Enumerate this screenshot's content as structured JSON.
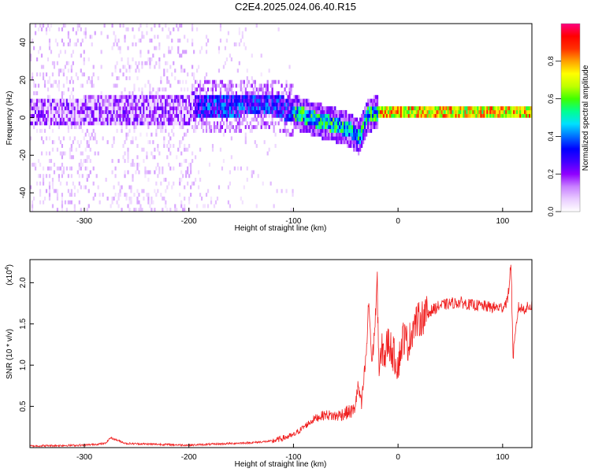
{
  "title": "C2E4.2025.024.06.40.R15",
  "chart_data": [
    {
      "type": "heatmap",
      "title": "C2E4.2025.024.06.40.R15",
      "xlabel": "Height of straight line (km)",
      "ylabel": "Frequency (Hz)",
      "xlim": [
        -352,
        128
      ],
      "ylim": [
        -50,
        50
      ],
      "xticks": [
        -300,
        -200,
        -100,
        0,
        100
      ],
      "yticks": [
        -40,
        -20,
        0,
        20,
        40
      ],
      "colorbar": {
        "label": "Normalized spectral amplitude",
        "range": [
          0.0,
          1.0
        ],
        "ticks": [
          0.0,
          0.2,
          0.4,
          0.6,
          0.8
        ],
        "colors": [
          "#ffffff",
          "#e9ccff",
          "#c880ff",
          "#8f00ff",
          "#4000ff",
          "#0000ff",
          "#0070ff",
          "#00e0ff",
          "#00ff90",
          "#40ff00",
          "#c0ff00",
          "#ffff00",
          "#ffa000",
          "#ff3000",
          "#ff0000",
          "#ff0080"
        ]
      },
      "ridge": {
        "x": [
          -350,
          -300,
          -250,
          -200,
          -150,
          -120,
          -100,
          -80,
          -60,
          -45,
          -38,
          -30,
          -20,
          0,
          50,
          100,
          128
        ],
        "y": [
          2,
          2,
          3,
          4,
          6,
          6,
          2,
          -2,
          -5,
          -8,
          -12,
          0,
          2,
          2,
          2,
          2,
          2
        ]
      },
      "grid": false
    },
    {
      "type": "line",
      "xlabel": "Height of straight line (km)",
      "ylabel": "SNR (10 * v/v)",
      "yscale_label": "(x10^4)",
      "scale_main": "(x10",
      "scale_exp": "4",
      "scale_close": ")",
      "xlim": [
        -352,
        128
      ],
      "ylim": [
        0,
        2.28
      ],
      "xticks": [
        -300,
        -200,
        -100,
        0,
        100
      ],
      "yticks": [
        0.5,
        1.0,
        1.5,
        2.0
      ],
      "ytick_labels": [
        "0.5",
        "1.0",
        "1.5",
        "2.0"
      ],
      "series": [
        {
          "color": "#f02020",
          "x": [
            -352,
            -300,
            -280,
            -275,
            -260,
            -200,
            -160,
            -140,
            -120,
            -100,
            -90,
            -80,
            -70,
            -60,
            -50,
            -42,
            -38,
            -35,
            -30,
            -28,
            -25,
            -22,
            -20,
            -18,
            -15,
            -12,
            -10,
            -5,
            0,
            5,
            10,
            15,
            20,
            25,
            30,
            40,
            50,
            60,
            70,
            80,
            90,
            100,
            105,
            108,
            110,
            115,
            120,
            128
          ],
          "y": [
            0.02,
            0.03,
            0.05,
            0.12,
            0.05,
            0.03,
            0.05,
            0.06,
            0.08,
            0.15,
            0.25,
            0.35,
            0.4,
            0.38,
            0.42,
            0.45,
            0.75,
            0.5,
            1.2,
            1.8,
            1.0,
            1.5,
            2.0,
            0.9,
            1.2,
            1.1,
            1.3,
            1.15,
            1.0,
            1.35,
            1.25,
            1.5,
            1.55,
            1.6,
            1.65,
            1.72,
            1.75,
            1.76,
            1.73,
            1.72,
            1.7,
            1.7,
            1.8,
            2.25,
            1.1,
            1.7,
            1.68,
            1.72
          ]
        }
      ],
      "grid": false
    }
  ]
}
